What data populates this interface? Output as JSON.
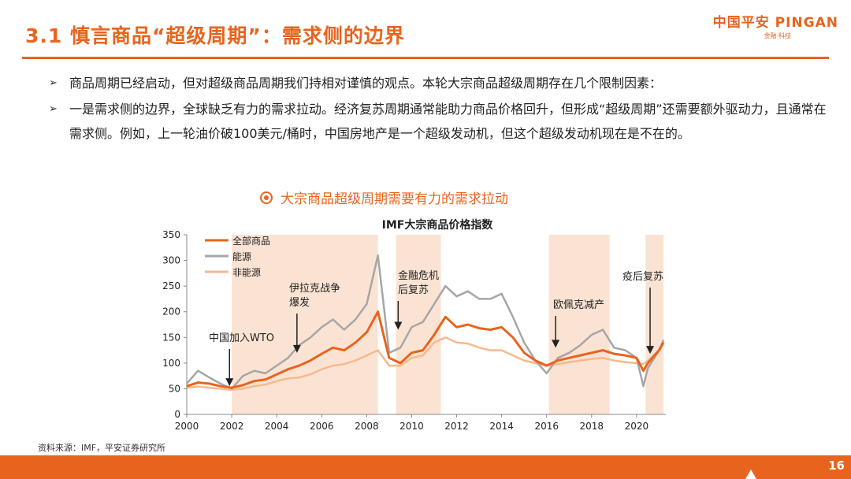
{
  "title": "3.1 慎言商品“超级周期”：需求侧的边界",
  "logo": {
    "main": "中国平安 PINGAN",
    "sub": "金融·科技"
  },
  "bullets": [
    "商品周期已经启动，但对超级商品周期我们持相对谨慎的观点。本轮大宗商品超级周期存在几个限制因素：",
    "一是需求侧的边界，全球缺乏有力的需求拉动。经济复苏周期通常能助力商品价格回升，但形成“超级周期”还需要额外驱动力，且通常在需求侧。例如，上一轮油价破100美元/桶时，中国房地产是一个超级发动机，但这个超级发动机现在是不在的。"
  ],
  "chart_heading": "大宗商品超级周期需要有力的需求拉动",
  "source": "资料来源：IMF，平安证券研究所",
  "page_number": "16",
  "colors": {
    "accent": "#e8641e",
    "all": "#e8641e",
    "energy": "#a6a6a6",
    "nonenergy": "#f7b98d",
    "shade": "#fbe3d3"
  },
  "chart_data": {
    "type": "line",
    "title": "IMF大宗商品价格指数",
    "xlabel": "",
    "ylabel": "",
    "xlim": [
      2000,
      2021.3
    ],
    "ylim": [
      0,
      350
    ],
    "y_ticks": [
      0,
      50,
      100,
      150,
      200,
      250,
      300,
      350
    ],
    "x_ticks": [
      2000,
      2002,
      2004,
      2006,
      2008,
      2010,
      2012,
      2014,
      2016,
      2018,
      2020
    ],
    "legend_position": "top-left",
    "shaded_periods": [
      [
        2002.0,
        2008.5
      ],
      [
        2009.3,
        2011.3
      ],
      [
        2016.1,
        2018.8
      ],
      [
        2020.4,
        2021.2
      ]
    ],
    "series": [
      {
        "name": "全部商品",
        "x": [
          2000,
          2000.5,
          2001,
          2001.5,
          2002,
          2002.5,
          2003,
          2003.5,
          2004,
          2004.5,
          2005,
          2005.5,
          2006,
          2006.5,
          2007,
          2007.5,
          2008,
          2008.5,
          2009,
          2009.5,
          2010,
          2010.5,
          2011,
          2011.5,
          2012,
          2012.5,
          2013,
          2013.5,
          2014,
          2014.5,
          2015,
          2015.5,
          2016,
          2016.5,
          2017,
          2017.5,
          2018,
          2018.5,
          2019,
          2019.5,
          2020,
          2020.3,
          2020.5,
          2021,
          2021.2
        ],
        "y": [
          55,
          62,
          60,
          55,
          52,
          57,
          65,
          68,
          78,
          88,
          95,
          105,
          118,
          130,
          125,
          140,
          160,
          200,
          110,
          100,
          120,
          125,
          155,
          190,
          170,
          175,
          168,
          165,
          170,
          150,
          120,
          105,
          95,
          105,
          110,
          115,
          120,
          125,
          118,
          115,
          110,
          85,
          100,
          125,
          140
        ]
      },
      {
        "name": "能源",
        "x": [
          2000,
          2000.5,
          2001,
          2001.5,
          2002,
          2002.5,
          2003,
          2003.5,
          2004,
          2004.5,
          2005,
          2005.5,
          2006,
          2006.5,
          2007,
          2007.5,
          2008,
          2008.5,
          2009,
          2009.5,
          2010,
          2010.5,
          2011,
          2011.5,
          2012,
          2012.5,
          2013,
          2013.5,
          2014,
          2014.5,
          2015,
          2015.5,
          2016,
          2016.5,
          2017,
          2017.5,
          2018,
          2018.5,
          2019,
          2019.5,
          2020,
          2020.3,
          2020.5,
          2021,
          2021.2
        ],
        "y": [
          60,
          85,
          72,
          60,
          50,
          75,
          85,
          80,
          95,
          110,
          135,
          150,
          170,
          185,
          165,
          185,
          215,
          310,
          120,
          130,
          170,
          180,
          215,
          250,
          230,
          240,
          225,
          225,
          235,
          190,
          140,
          105,
          80,
          110,
          120,
          135,
          155,
          165,
          130,
          125,
          110,
          55,
          90,
          125,
          145
        ]
      },
      {
        "name": "非能源",
        "x": [
          2000,
          2000.5,
          2001,
          2001.5,
          2002,
          2002.5,
          2003,
          2003.5,
          2004,
          2004.5,
          2005,
          2005.5,
          2006,
          2006.5,
          2007,
          2007.5,
          2008,
          2008.5,
          2009,
          2009.5,
          2010,
          2010.5,
          2011,
          2011.5,
          2012,
          2012.5,
          2013,
          2013.5,
          2014,
          2014.5,
          2015,
          2015.5,
          2016,
          2016.5,
          2017,
          2017.5,
          2018,
          2018.5,
          2019,
          2019.5,
          2020,
          2020.3,
          2020.5,
          2021,
          2021.2
        ],
        "y": [
          52,
          54,
          52,
          50,
          48,
          50,
          55,
          58,
          65,
          70,
          72,
          78,
          88,
          95,
          98,
          105,
          115,
          125,
          95,
          95,
          110,
          115,
          140,
          150,
          140,
          138,
          130,
          125,
          125,
          115,
          105,
          100,
          95,
          98,
          102,
          105,
          108,
          110,
          105,
          102,
          100,
          98,
          105,
          125,
          140
        ]
      }
    ],
    "annotations": [
      {
        "text": "中国加入WTO",
        "x": 2001.9,
        "y": 55
      },
      {
        "text": "伊拉克战争爆发",
        "x": 2004.9,
        "y": 120
      },
      {
        "text": "金融危机后复苏",
        "x": 2009.4,
        "y": 165
      },
      {
        "text": "欧佩克减产",
        "x": 2016.4,
        "y": 130
      },
      {
        "text": "疫后复苏",
        "x": 2020.6,
        "y": 118
      }
    ]
  }
}
